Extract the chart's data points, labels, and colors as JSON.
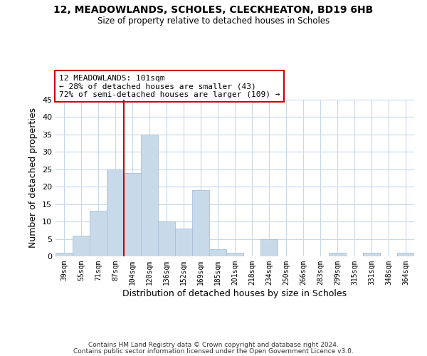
{
  "title": "12, MEADOWLANDS, SCHOLES, CLECKHEATON, BD19 6HB",
  "subtitle": "Size of property relative to detached houses in Scholes",
  "xlabel": "Distribution of detached houses by size in Scholes",
  "ylabel": "Number of detached properties",
  "bar_color": "#c8daea",
  "bar_edge_color": "#a8c0d8",
  "bin_labels": [
    "39sqm",
    "55sqm",
    "71sqm",
    "87sqm",
    "104sqm",
    "120sqm",
    "136sqm",
    "152sqm",
    "169sqm",
    "185sqm",
    "201sqm",
    "218sqm",
    "234sqm",
    "250sqm",
    "266sqm",
    "283sqm",
    "299sqm",
    "315sqm",
    "331sqm",
    "348sqm",
    "364sqm"
  ],
  "bar_heights": [
    1,
    6,
    13,
    25,
    24,
    35,
    10,
    8,
    19,
    2,
    1,
    0,
    5,
    0,
    0,
    0,
    1,
    0,
    1,
    0,
    1
  ],
  "ylim": [
    0,
    45
  ],
  "yticks": [
    0,
    5,
    10,
    15,
    20,
    25,
    30,
    35,
    40,
    45
  ],
  "vline_x": 4,
  "vline_color": "#cc0000",
  "annotation_line1": "12 MEADOWLANDS: 101sqm",
  "annotation_line2": "← 28% of detached houses are smaller (43)",
  "annotation_line3": "72% of semi-detached houses are larger (109) →",
  "annotation_box_color": "#ffffff",
  "annotation_box_edge": "#cc0000",
  "footer_line1": "Contains HM Land Registry data © Crown copyright and database right 2024.",
  "footer_line2": "Contains public sector information licensed under the Open Government Licence v3.0.",
  "background_color": "#ffffff",
  "grid_color": "#c8d8e8"
}
